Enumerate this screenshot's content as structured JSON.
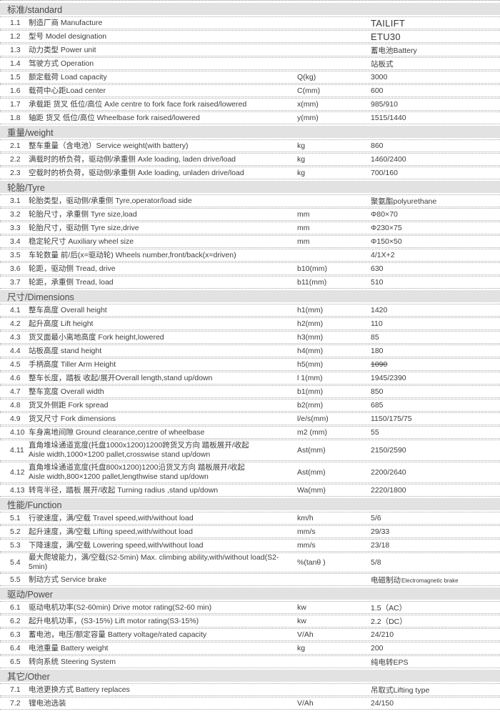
{
  "accent_colors": {
    "section_header_bg": "#e2e2e2",
    "text": "#3d3d3d",
    "separator_dots": "#a9a9a9"
  },
  "table": {
    "sections": [
      {
        "title": "标准/standard",
        "rows": [
          {
            "no": "1.1",
            "label": "制造厂商   Manufacture",
            "unit": "",
            "value": "TAILIFT",
            "big": true
          },
          {
            "no": "1.2",
            "label": "型号 Model designation",
            "unit": "",
            "value": "ETU30",
            "big": true
          },
          {
            "no": "1.3",
            "label": "动力类型   Power unit",
            "unit": "",
            "value": "蓄电池Battery"
          },
          {
            "no": "1.4",
            "label": "驾驶方式   Operation",
            "unit": "",
            "value": "站板式"
          },
          {
            "no": "1.5",
            "label": "额定载荷   Load capacity",
            "unit": "Q(kg)",
            "value": "3000"
          },
          {
            "no": "1.6",
            "label": "载荷中心距Load center",
            "unit": "C(mm)",
            "value": "600"
          },
          {
            "no": "1.7",
            "label": "承载距 货叉 低位/高位 Axle centre to fork face fork raised/lowered",
            "unit": "x(mm)",
            "value": "985/910"
          },
          {
            "no": "1.8",
            "label": "轴距 货叉 低位/高位 Wheelbase  fork raised/lowered",
            "unit": "y(mm)",
            "value": "1515/1440"
          }
        ]
      },
      {
        "title": "重量/weight",
        "rows": [
          {
            "no": "2.1",
            "label": "整车重量（含电池）Service weight(with battery)",
            "unit": "kg",
            "value": "860"
          },
          {
            "no": "2.2",
            "label": "满载时的桥负荷，驱动侧/承重侧  Axle loading, laden drive/load",
            "unit": "kg",
            "value": "1460/2400"
          },
          {
            "no": "2.3",
            "label": "空载时的桥负荷，驱动侧/承重侧  Axle loading, unladen drive/load",
            "unit": "kg",
            "value": "700/160"
          }
        ]
      },
      {
        "title": "轮胎/Tyre",
        "rows": [
          {
            "no": "3.1",
            "label": "轮胎类型，驱动侧/承重侧 Tyre,operator/load side",
            "unit": "",
            "value": "聚氨酯polyurethane"
          },
          {
            "no": "3.2",
            "label": "轮胎尺寸，承重侧 Tyre size,load",
            "unit": "mm",
            "value": "Φ80×70"
          },
          {
            "no": "3.3",
            "label": "轮胎尺寸，驱动侧 Tyre size,drive",
            "unit": "mm",
            "value": "Φ230×75"
          },
          {
            "no": "3.4",
            "label": "稳定轮尺寸 Auxiliary wheel size",
            "unit": "mm",
            "value": "Φ150×50"
          },
          {
            "no": "3.5",
            "label": "车轮数量 前/后(x=驱动轮) Wheels number,front/back(x=driven)",
            "unit": "",
            "value": "4/1X+2"
          },
          {
            "no": "3.6",
            "label": "轮距，驱动侧 Tread, drive",
            "unit": "b10(mm)",
            "value": "630"
          },
          {
            "no": "3.7",
            "label": "轮距，承重侧 Tread, load",
            "unit": "b11(mm)",
            "value": "510"
          }
        ]
      },
      {
        "title": "尺寸/Dimensions",
        "rows": [
          {
            "no": "4.1",
            "label": "整车高度 Overall height",
            "unit": "h1(mm)",
            "value": "1420"
          },
          {
            "no": "4.2",
            "label": "起升高度 Lift height",
            "unit": "h2(mm)",
            "value": "110"
          },
          {
            "no": "4.3",
            "label": "货叉面最小离地高度 Fork height,lowered",
            "unit": "h3(mm)",
            "value": "85"
          },
          {
            "no": "4.4",
            "label": "站板高度 stand height",
            "unit": "h4(mm)",
            "value": "180"
          },
          {
            "no": "4.5",
            "label": "手柄高度 Tiller Arm Height",
            "unit": "h5(mm)",
            "value": "1090",
            "strike": true
          },
          {
            "no": "4.6",
            "label": "整车长度，踏板 收起/展开Overall length,stand up/down",
            "unit": "l 1(mm)",
            "value": "1945/2390"
          },
          {
            "no": "4.7",
            "label": "整车宽度 Overall width",
            "unit": "b1(mm)",
            "value": "850"
          },
          {
            "no": "4.8",
            "label": "货叉外侧距 Fork spread",
            "unit": "b2(mm)",
            "value": "685"
          },
          {
            "no": "4.9",
            "label": "货叉尺寸 Fork dimensions",
            "unit": "l/e/s(mm)",
            "value": "1150/175/75"
          },
          {
            "no": "4.10",
            "label": "车身离地间隙 Ground clearance,centre of  wheelbase",
            "unit": "m2 (mm)",
            "value": "55"
          },
          {
            "no": "4.11",
            "label": "直角堆垛通道宽度(托盘1000x1200)1200跨货叉方向 踏板展开/收起\nAisle width,1000×1200 pallet,crosswise stand up/down",
            "unit": "Ast(mm)",
            "value": "2150/2590",
            "twoline": true
          },
          {
            "no": "4.12",
            "label": "直角堆垛通道宽度(托盘800x1200)1200沿货叉方向 踏板展开/收起\nAisle width,800×1200 pallet,lengthwise stand up/down",
            "unit": "Ast(mm)",
            "value": "2200/2640",
            "twoline": true
          },
          {
            "no": "4.13",
            "label": "转弯半径，踏板 展开/收起  Turning radius ,stand up/down",
            "unit": "Wa(mm)",
            "value": "2220/1800"
          }
        ]
      },
      {
        "title": "性能/Function",
        "rows": [
          {
            "no": "5.1",
            "label": "行驶速度，满/空载 Travel speed,with/without load",
            "unit": "km/h",
            "value": "5/6"
          },
          {
            "no": "5.2",
            "label": "起升速度，满/空载 Lifting speed,with/without load",
            "unit": "mm/s",
            "value": "29/33"
          },
          {
            "no": "5.3",
            "label": "下降速度，满/空载 Lowering speed,with/without load",
            "unit": "mm/s",
            "value": "23/18"
          },
          {
            "no": "5.4",
            "label": "最大爬坡能力，满/空载(S2-5min) Max. climbing ability,with/without load(S2-5min)",
            "unit": "%(tanθ )",
            "value": "5/8"
          },
          {
            "no": "5.5",
            "label": "制动方式 Service brake",
            "unit": "",
            "value": "电磁制动",
            "value_small": "Electromagnetic brake"
          }
        ]
      },
      {
        "title": "驱动/Power",
        "rows": [
          {
            "no": "6.1",
            "label": "驱动电机功率(S2-60min)   Drive motor rating(S2-60 min)",
            "unit": "kw",
            "value": "1.5（AC）"
          },
          {
            "no": "6.2",
            "label": "起升电机功率，(S3-15%)  Lift motor rating(S3-15%)",
            "unit": "kw",
            "value": "2.2（DC）"
          },
          {
            "no": "6.3",
            "label": "蓄电池，电压/额定容量    Battery voltage/rated capacity",
            "unit": "V/Ah",
            "value": "24/210"
          },
          {
            "no": "6.4",
            "label": "电池重量 Battery weight",
            "unit": "kg",
            "value": "200"
          },
          {
            "no": "6.5",
            "label": "转向系统 Steering System",
            "unit": "",
            "value": "纯电转EPS"
          }
        ]
      },
      {
        "title": "其它/Other",
        "rows": [
          {
            "no": "7.1",
            "label": "电池更换方式   Battery replaces",
            "unit": "",
            "value": "吊取式Lifting type"
          },
          {
            "no": "7.2",
            "label": "锂电池选装",
            "unit": "V/Ah",
            "value": "24/150"
          }
        ]
      }
    ]
  }
}
